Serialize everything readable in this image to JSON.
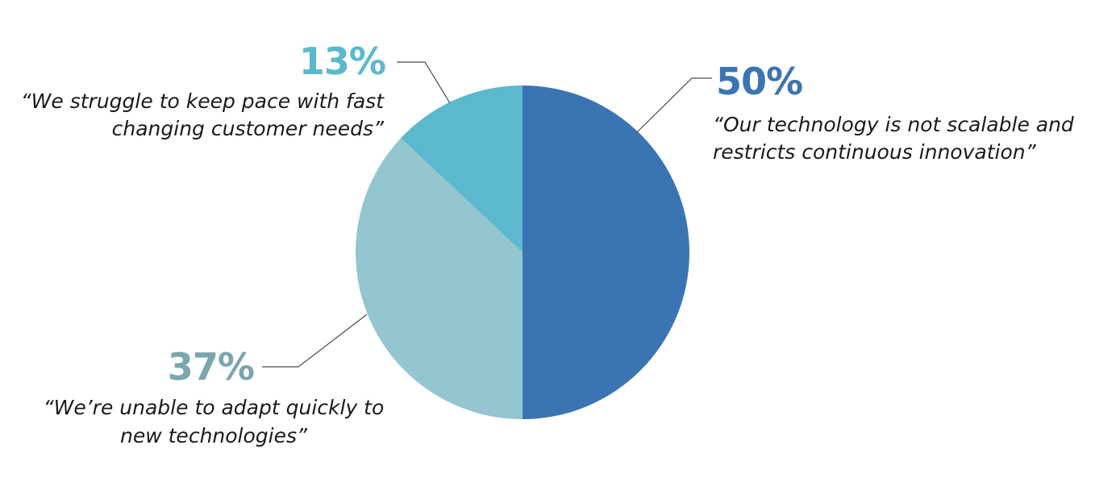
{
  "chart_data": {
    "type": "pie",
    "slices": [
      {
        "value": 50,
        "label": "50%",
        "quote": [
          "“Our technology is not scalable and",
          "restricts continuous innovation”"
        ],
        "color": "#3a74b3"
      },
      {
        "value": 37,
        "label": "37%",
        "quote": [
          "“We’re unable to adapt quickly to",
          "new technologies”"
        ],
        "color": "#94c6d0",
        "label_color": "#7aa6ad"
      },
      {
        "value": 13,
        "label": "13%",
        "quote": [
          "“We struggle to keep pace with fast",
          "changing customer needs”"
        ],
        "color": "#5cb8cd"
      }
    ],
    "legend": "none"
  }
}
